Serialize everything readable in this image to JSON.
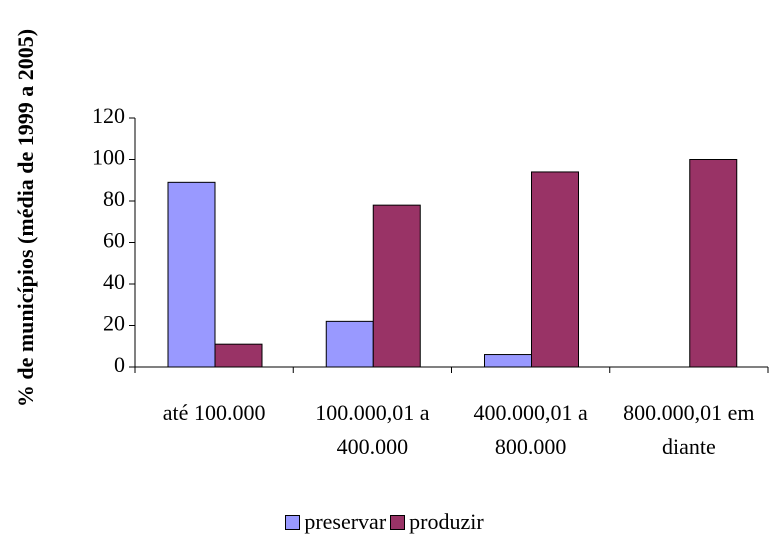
{
  "chart_data": {
    "type": "bar",
    "y_label": "% de municípios (média de 1999 a 2005)",
    "categories": [
      "até 100.000",
      "100.000,01 a 400.000",
      "400.000,01 a 800.000",
      "800.000,01 em diante"
    ],
    "series": [
      {
        "name": "preservar",
        "color": "#9999ff",
        "values": [
          89,
          22,
          6,
          0
        ]
      },
      {
        "name": "produzir",
        "color": "#993366",
        "values": [
          11,
          78,
          94,
          100
        ]
      }
    ],
    "ylim": [
      0,
      120
    ],
    "yticks": [
      0,
      20,
      40,
      60,
      80,
      100,
      120
    ],
    "grid": false
  }
}
